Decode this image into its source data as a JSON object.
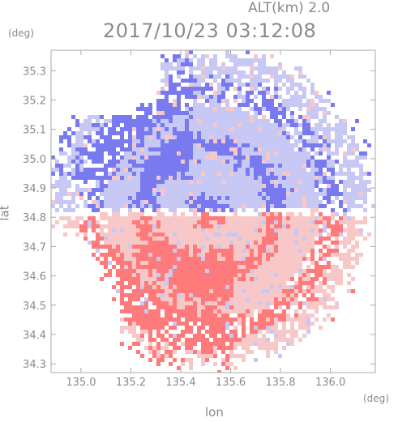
{
  "header": {
    "altitude_text": "ALT(km) 2.0",
    "datetime_text": "2017/10/23 03:12:08"
  },
  "chart_data": {
    "type": "heatmap",
    "title": "2017/10/23 03:12:08",
    "subtitle": "ALT(km) 2.0",
    "xlabel": "lon",
    "ylabel": "lat",
    "x_unit": "(deg)",
    "y_unit": "(deg)",
    "xlim": [
      134.88,
      136.18
    ],
    "ylim": [
      34.27,
      35.37
    ],
    "x_ticks": [
      135.0,
      135.2,
      135.4,
      135.6,
      135.8,
      136.0
    ],
    "x_tick_labels": [
      "135.0",
      "135.2",
      "135.4",
      "135.6",
      "135.8",
      "136.0"
    ],
    "y_ticks": [
      34.3,
      34.4,
      34.5,
      34.6,
      34.7,
      34.8,
      34.9,
      35.0,
      35.1,
      35.2,
      35.3
    ],
    "y_tick_labels": [
      "34.3",
      "34.4",
      "34.5",
      "34.6",
      "34.7",
      "34.8",
      "34.9",
      "35.0",
      "35.1",
      "35.2",
      "35.3"
    ],
    "grid": false,
    "radar_center": [
      135.52,
      34.82
    ],
    "colors": {
      "away_light": "#f8c8c8",
      "away_strong": "#ff7a7a",
      "toward_light": "#c8c8f4",
      "toward_strong": "#7a7af0",
      "axis": "#aaaaaa"
    }
  }
}
